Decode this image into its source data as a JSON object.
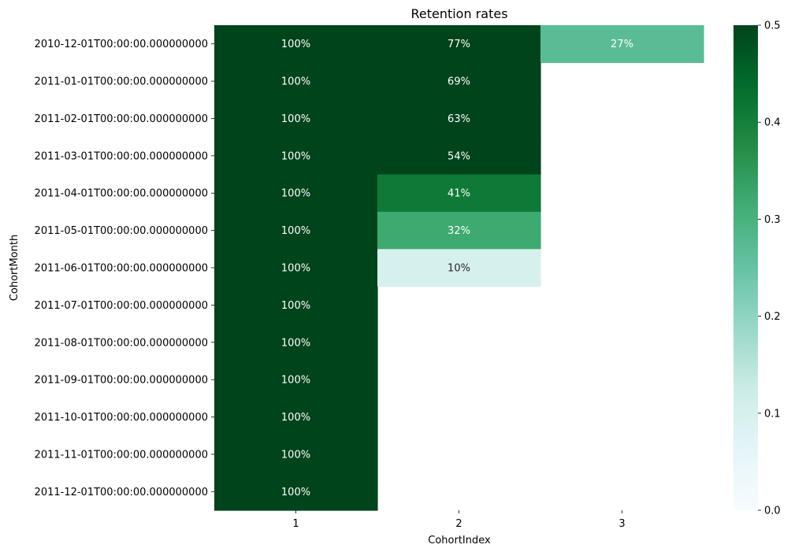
{
  "chart_data": {
    "type": "heatmap",
    "title": "Retention rates",
    "xlabel": "CohortIndex",
    "ylabel": "CohortMonth",
    "x_categories": [
      "1",
      "2",
      "3"
    ],
    "y_categories": [
      "2010-12-01T00:00:00.000000000",
      "2011-01-01T00:00:00.000000000",
      "2011-02-01T00:00:00.000000000",
      "2011-03-01T00:00:00.000000000",
      "2011-04-01T00:00:00.000000000",
      "2011-05-01T00:00:00.000000000",
      "2011-06-01T00:00:00.000000000",
      "2011-07-01T00:00:00.000000000",
      "2011-08-01T00:00:00.000000000",
      "2011-09-01T00:00:00.000000000",
      "2011-10-01T00:00:00.000000000",
      "2011-11-01T00:00:00.000000000",
      "2011-12-01T00:00:00.000000000"
    ],
    "values": [
      [
        1.0,
        0.77,
        0.27
      ],
      [
        1.0,
        0.69,
        null
      ],
      [
        1.0,
        0.63,
        null
      ],
      [
        1.0,
        0.54,
        null
      ],
      [
        1.0,
        0.41,
        null
      ],
      [
        1.0,
        0.32,
        null
      ],
      [
        1.0,
        0.1,
        null
      ],
      [
        1.0,
        null,
        null
      ],
      [
        1.0,
        null,
        null
      ],
      [
        1.0,
        null,
        null
      ],
      [
        1.0,
        null,
        null
      ],
      [
        1.0,
        null,
        null
      ],
      [
        1.0,
        null,
        null
      ]
    ],
    "annotations": [
      [
        "100%",
        "77%",
        "27%"
      ],
      [
        "100%",
        "69%",
        ""
      ],
      [
        "100%",
        "63%",
        ""
      ],
      [
        "100%",
        "54%",
        ""
      ],
      [
        "100%",
        "41%",
        ""
      ],
      [
        "100%",
        "32%",
        ""
      ],
      [
        "100%",
        "10%",
        ""
      ],
      [
        "100%",
        "",
        ""
      ],
      [
        "100%",
        "",
        ""
      ],
      [
        "100%",
        "",
        ""
      ],
      [
        "100%",
        "",
        ""
      ],
      [
        "100%",
        "",
        ""
      ],
      [
        "100%",
        "",
        ""
      ]
    ],
    "colormap": "BuGn",
    "vmin": 0.0,
    "vmax": 0.5,
    "colorbar_ticks": [
      "0.0",
      "0.1",
      "0.2",
      "0.3",
      "0.4",
      "0.5"
    ]
  }
}
